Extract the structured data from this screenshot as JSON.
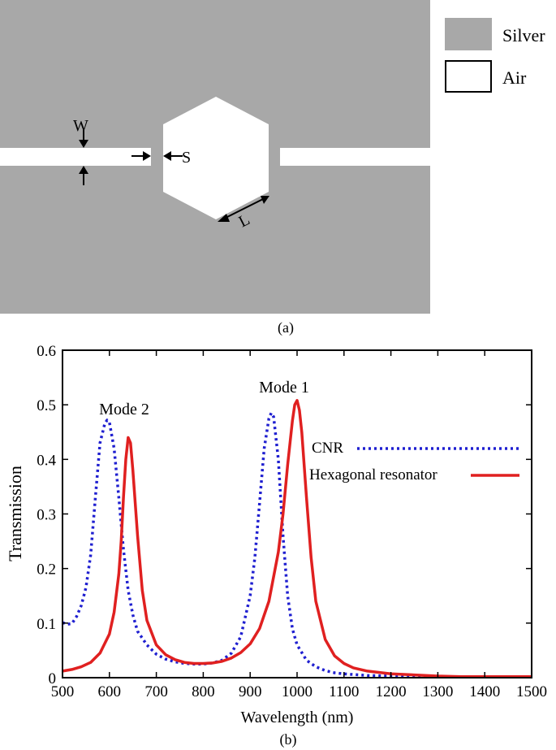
{
  "figure": {
    "legend_a": [
      {
        "label": "Silver",
        "color": "#a8a8a8"
      },
      {
        "label": "Air",
        "color": "#ffffff"
      }
    ],
    "dims": {
      "w": "W",
      "s": "S",
      "l": "L"
    },
    "caption_a": "(a)",
    "caption_b": "(b)",
    "annotations": {
      "mode1": "Mode 1",
      "mode2": "Mode 2"
    }
  },
  "chart_data": {
    "type": "line",
    "title": "",
    "xlabel": "Wavelength (nm)",
    "ylabel": "Transmission",
    "xlim": [
      500,
      1500
    ],
    "ylim": [
      0,
      0.6
    ],
    "xticks": [
      "500",
      "600",
      "700",
      "800",
      "900",
      "1000",
      "1100",
      "1200",
      "1300",
      "1400",
      "1500"
    ],
    "yticks": [
      "0",
      "0.1",
      "0.2",
      "0.3",
      "0.4",
      "0.5",
      "0.6"
    ],
    "legend_position": "right",
    "series": [
      {
        "name": "CNR",
        "color": "#1f1fd0",
        "style": "dotted",
        "x": [
          500,
          510,
          520,
          530,
          540,
          550,
          560,
          570,
          580,
          590,
          595,
          600,
          610,
          620,
          630,
          640,
          650,
          660,
          680,
          700,
          720,
          740,
          760,
          780,
          800,
          820,
          840,
          860,
          880,
          900,
          910,
          920,
          930,
          940,
          945,
          950,
          960,
          970,
          980,
          990,
          1000,
          1020,
          1040,
          1060,
          1080,
          1100,
          1150,
          1200,
          1250,
          1300,
          1350,
          1400,
          1450,
          1500
        ],
        "y": [
          0.101,
          0.098,
          0.099,
          0.112,
          0.132,
          0.165,
          0.225,
          0.33,
          0.43,
          0.465,
          0.472,
          0.468,
          0.42,
          0.33,
          0.235,
          0.16,
          0.115,
          0.085,
          0.06,
          0.043,
          0.034,
          0.029,
          0.026,
          0.025,
          0.025,
          0.027,
          0.032,
          0.045,
          0.075,
          0.15,
          0.22,
          0.32,
          0.42,
          0.475,
          0.485,
          0.478,
          0.4,
          0.26,
          0.15,
          0.09,
          0.06,
          0.032,
          0.02,
          0.013,
          0.009,
          0.007,
          0.004,
          0.003,
          0.002,
          0.002,
          0.001,
          0.001,
          0.001,
          0.001
        ]
      },
      {
        "name": "Hexagonal resonator",
        "color": "#e02020",
        "style": "solid",
        "x": [
          500,
          520,
          540,
          560,
          580,
          600,
          610,
          620,
          625,
          630,
          635,
          640,
          645,
          650,
          660,
          670,
          680,
          700,
          720,
          740,
          760,
          780,
          800,
          820,
          840,
          860,
          880,
          900,
          920,
          940,
          960,
          970,
          980,
          990,
          995,
          1000,
          1005,
          1010,
          1020,
          1030,
          1040,
          1060,
          1080,
          1100,
          1120,
          1150,
          1200,
          1250,
          1300,
          1350,
          1400,
          1450,
          1500
        ],
        "y": [
          0.012,
          0.015,
          0.02,
          0.028,
          0.045,
          0.08,
          0.12,
          0.19,
          0.25,
          0.33,
          0.4,
          0.44,
          0.43,
          0.38,
          0.26,
          0.16,
          0.105,
          0.06,
          0.042,
          0.033,
          0.028,
          0.026,
          0.026,
          0.027,
          0.03,
          0.036,
          0.046,
          0.062,
          0.09,
          0.14,
          0.23,
          0.3,
          0.39,
          0.47,
          0.5,
          0.508,
          0.49,
          0.45,
          0.33,
          0.22,
          0.14,
          0.07,
          0.04,
          0.026,
          0.018,
          0.012,
          0.007,
          0.005,
          0.003,
          0.002,
          0.002,
          0.002,
          0.002
        ]
      }
    ]
  }
}
